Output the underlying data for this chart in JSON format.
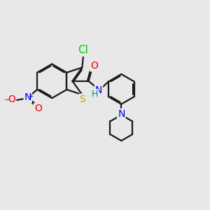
{
  "fig_bg": "#e8e8e8",
  "bond_color": "#1a1a1a",
  "bond_width": 1.6,
  "dbo": 0.055,
  "atom_colors": {
    "Cl": "#00cc00",
    "S": "#bbaa00",
    "N_amide": "#0000ee",
    "H_amide": "#008888",
    "N_pip": "#0000ee",
    "O_carbonyl": "#ee0000",
    "O_nitro": "#ee0000",
    "N_nitro": "#0000ee"
  },
  "fs": 10,
  "xlim": [
    0,
    10
  ],
  "ylim": [
    0,
    10
  ]
}
